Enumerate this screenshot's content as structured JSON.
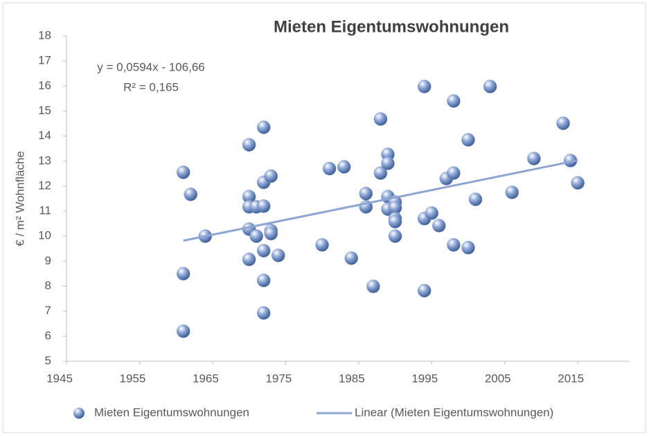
{
  "chart_data": {
    "type": "scatter",
    "title": "Mieten Eigentumswohnungen",
    "y_label": "€ / m² Wohnfläche",
    "annotations": [
      "y = 0,0594x - 106,66",
      "R² = 0,165"
    ],
    "xlim": [
      1945,
      2022
    ],
    "xticks": [
      1945,
      1955,
      1965,
      1975,
      1985,
      1995,
      2005,
      2015
    ],
    "ylim": [
      5,
      18
    ],
    "yticks": [
      5,
      6,
      7,
      8,
      9,
      10,
      11,
      12,
      13,
      14,
      15,
      16,
      17,
      18
    ],
    "legend": "bottom",
    "series": [
      {
        "name": "Mieten Eigentumswohnungen",
        "color": "#8fa8d6",
        "x": [
          1961,
          1962,
          1961,
          1961,
          1964,
          1970,
          1970,
          1970,
          1970,
          1970,
          1971,
          1971,
          1972,
          1972,
          1972,
          1972,
          1972,
          1972,
          1973,
          1973,
          1973,
          1974,
          1980,
          1981,
          1983,
          1984,
          1986,
          1986,
          1987,
          1988,
          1988,
          1989,
          1989,
          1989,
          1989,
          1990,
          1990,
          1990,
          1990,
          1990,
          1994,
          1994,
          1994,
          1995,
          1996,
          1997,
          1998,
          1998,
          1998,
          2000,
          2000,
          2001,
          2003,
          2006,
          2009,
          2013,
          2014,
          2015
        ],
        "values": [
          12.55,
          11.67,
          8.5,
          6.2,
          10.0,
          13.65,
          11.58,
          11.17,
          10.28,
          9.07,
          11.17,
          10.0,
          14.35,
          12.15,
          11.2,
          9.42,
          8.23,
          6.93,
          12.4,
          10.22,
          10.1,
          9.23,
          9.65,
          12.7,
          12.77,
          9.12,
          11.17,
          11.7,
          7.99,
          14.68,
          12.52,
          13.27,
          12.91,
          11.58,
          11.08,
          11.36,
          11.14,
          10.7,
          10.58,
          10.0,
          15.98,
          10.7,
          7.82,
          10.92,
          10.42,
          12.3,
          12.52,
          15.4,
          9.65,
          9.54,
          13.85,
          11.47,
          15.98,
          11.75,
          13.1,
          14.51,
          13.02,
          12.13
        ]
      }
    ],
    "trendline": {
      "name": "Linear (Mieten Eigentumswohnungen)",
      "color": "#8ea5d3",
      "x": [
        1961,
        2015
      ],
      "values": [
        9.82,
        13.03
      ]
    }
  }
}
